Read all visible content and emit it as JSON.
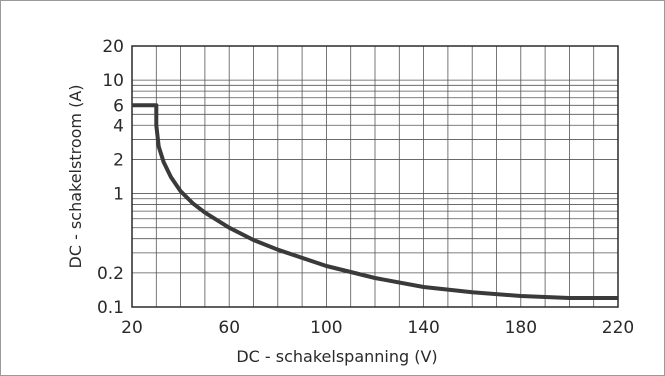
{
  "chart_data": {
    "type": "line",
    "title": "",
    "xlabel": "DC - schakelspanning (V)",
    "ylabel": "DC - schakelstroom (A)",
    "x_scale": "linear",
    "y_scale": "log",
    "xlim": [
      20,
      220
    ],
    "ylim": [
      0.1,
      20
    ],
    "x_ticks": [
      20,
      60,
      100,
      140,
      180,
      220
    ],
    "x_tick_labels": [
      "20",
      "60",
      "100",
      "140",
      "180",
      "220"
    ],
    "y_ticks": [
      0.1,
      0.2,
      1,
      2,
      4,
      6,
      10,
      20
    ],
    "y_tick_labels": [
      "0.1",
      "0.2",
      "1",
      "2",
      "4",
      "6",
      "10",
      "20"
    ],
    "x_grid": [
      30,
      40,
      50,
      60,
      70,
      80,
      90,
      100,
      110,
      120,
      130,
      140,
      150,
      160,
      170,
      180,
      190,
      200,
      210
    ],
    "y_grid": [
      0.2,
      0.3,
      0.4,
      0.5,
      0.6,
      0.7,
      0.8,
      0.9,
      1,
      2,
      3,
      4,
      5,
      6,
      7,
      8,
      9,
      10
    ],
    "grid": true,
    "series": [
      {
        "color": "#3a3a3a",
        "x": [
          20,
          30,
          30,
          31,
          33,
          36,
          40,
          45,
          50,
          60,
          70,
          80,
          100,
          120,
          140,
          160,
          180,
          200,
          220
        ],
        "y": [
          6,
          6,
          4,
          2.6,
          1.9,
          1.4,
          1.05,
          0.82,
          0.68,
          0.5,
          0.39,
          0.32,
          0.23,
          0.18,
          0.15,
          0.135,
          0.125,
          0.12,
          0.12
        ]
      }
    ]
  }
}
